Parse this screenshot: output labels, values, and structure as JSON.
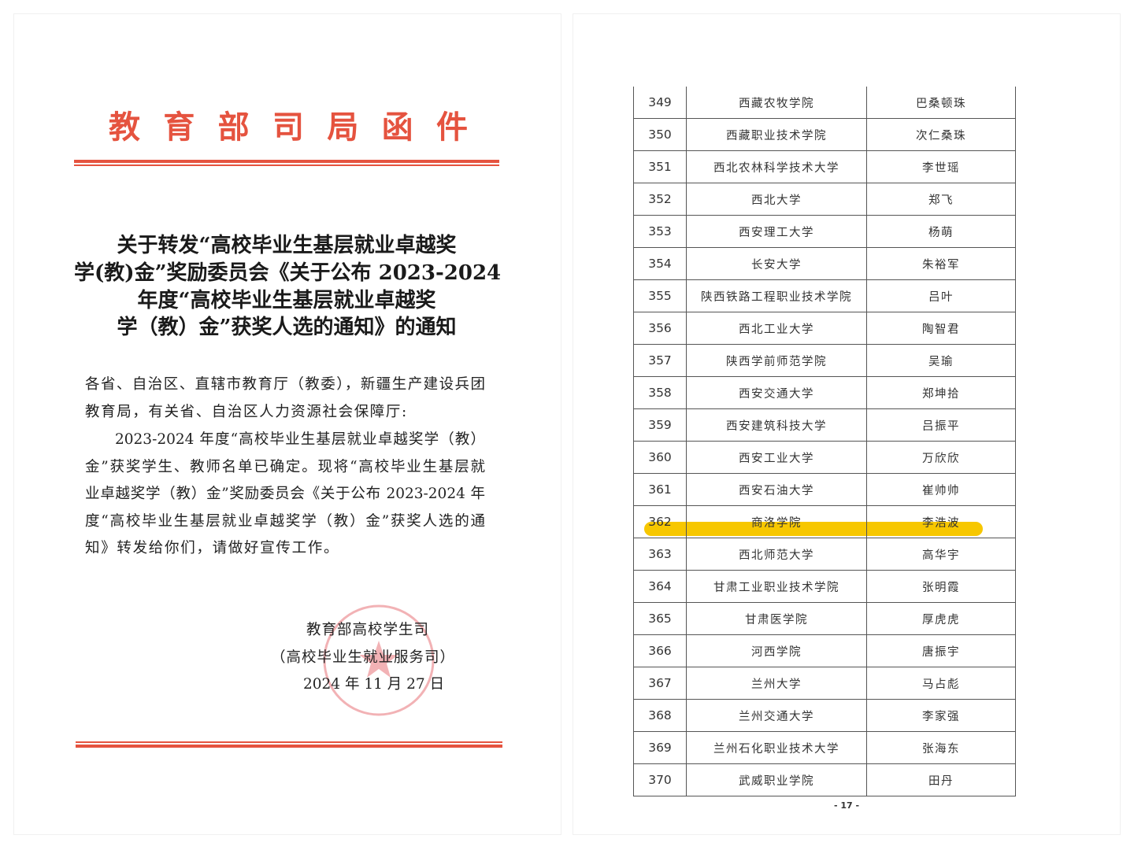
{
  "left_page": {
    "letterhead": [
      "教",
      "育",
      "部",
      "司",
      "局",
      "函",
      "件"
    ],
    "title_lines": [
      "关于转发“高校毕业生基层就业卓越奖",
      "学(教)金”奖励委员会《关于公布 2023-2024",
      "年度“高校毕业生基层就业卓越奖",
      "学（教）金”获奖人选的通知》的通知"
    ],
    "body_lines": [
      "各省、自治区、直辖市教育厅（教委），新疆生产建设兵团",
      "教育局，有关省、自治区人力资源社会保障厅:",
      "2023-2024 年度“高校毕业生基层就业卓越奖学（教）",
      "金”获奖学生、教师名单已确定。现将“高校毕业生基层就",
      "业卓越奖学（教）金”奖励委员会《关于公布 2023-2024 年",
      "度“高校毕业生基层就业卓越奖学（教）金”获奖人选的通",
      "知》转发给你们，请做好宣传工作。"
    ],
    "signature": {
      "org": "教育部高校学生司",
      "org_alt": "（高校毕业生就业服务司）",
      "date": "2024 年 11 月 27 日"
    },
    "colors": {
      "red": "#e5533f",
      "seal": "#e8747a"
    }
  },
  "right_page": {
    "table": {
      "rows": [
        {
          "no": "349",
          "school": "西藏农牧学院",
          "name": "巴桑顿珠"
        },
        {
          "no": "350",
          "school": "西藏职业技术学院",
          "name": "次仁桑珠"
        },
        {
          "no": "351",
          "school": "西北农林科学技术大学",
          "name": "李世瑶"
        },
        {
          "no": "352",
          "school": "西北大学",
          "name": "郑飞"
        },
        {
          "no": "353",
          "school": "西安理工大学",
          "name": "杨萌"
        },
        {
          "no": "354",
          "school": "长安大学",
          "name": "朱裕军"
        },
        {
          "no": "355",
          "school": "陕西铁路工程职业技术学院",
          "name": "吕叶"
        },
        {
          "no": "356",
          "school": "西北工业大学",
          "name": "陶智君"
        },
        {
          "no": "357",
          "school": "陕西学前师范学院",
          "name": "吴瑜"
        },
        {
          "no": "358",
          "school": "西安交通大学",
          "name": "郑坤拾"
        },
        {
          "no": "359",
          "school": "西安建筑科技大学",
          "name": "吕振平"
        },
        {
          "no": "360",
          "school": "西安工业大学",
          "name": "万欣欣"
        },
        {
          "no": "361",
          "school": "西安石油大学",
          "name": "崔帅帅"
        },
        {
          "no": "362",
          "school": "商洛学院",
          "name": "李浩波",
          "highlighted": true
        },
        {
          "no": "363",
          "school": "西北师范大学",
          "name": "高华宇"
        },
        {
          "no": "364",
          "school": "甘肃工业职业技术学院",
          "name": "张明霞"
        },
        {
          "no": "365",
          "school": "甘肃医学院",
          "name": "厚虎虎"
        },
        {
          "no": "366",
          "school": "河西学院",
          "name": "唐振宇"
        },
        {
          "no": "367",
          "school": "兰州大学",
          "name": "马占彪"
        },
        {
          "no": "368",
          "school": "兰州交通大学",
          "name": "李家强"
        },
        {
          "no": "369",
          "school": "兰州石化职业技术大学",
          "name": "张海东"
        },
        {
          "no": "370",
          "school": "武威职业学院",
          "name": "田丹"
        }
      ]
    },
    "page_number": "- 17 -",
    "highlight_color": "#f7c700"
  }
}
